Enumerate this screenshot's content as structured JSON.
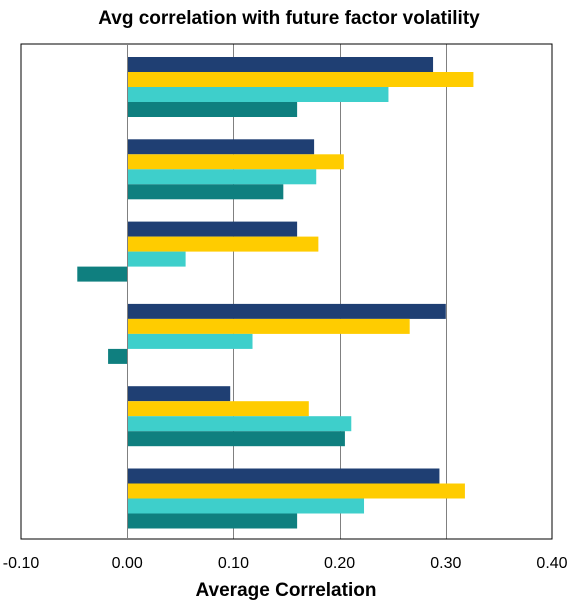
{
  "chart_data": {
    "type": "bar",
    "orientation": "horizontal",
    "title": "Avg correlation with future factor volatility",
    "xlabel": "Average Correlation",
    "ylabel": "",
    "xlim": [
      -0.1,
      0.4
    ],
    "x_ticks": [
      "-0.10",
      "0.00",
      "0.10",
      "0.20",
      "0.30",
      "0.40"
    ],
    "grid": "vertical",
    "legend": "none",
    "category_count": 6,
    "series": [
      {
        "color": "#1F3F73",
        "values": [
          0.288,
          0.176,
          0.16,
          0.3,
          0.097,
          0.294
        ]
      },
      {
        "color": "#FFCC00",
        "values": [
          0.326,
          0.204,
          0.18,
          0.266,
          0.171,
          0.318
        ]
      },
      {
        "color": "#3ECFCB",
        "values": [
          0.246,
          0.178,
          0.055,
          0.118,
          0.211,
          0.223
        ]
      },
      {
        "color": "#0F7F7F",
        "values": [
          0.16,
          0.147,
          -0.047,
          -0.018,
          0.205,
          0.16
        ]
      }
    ]
  }
}
